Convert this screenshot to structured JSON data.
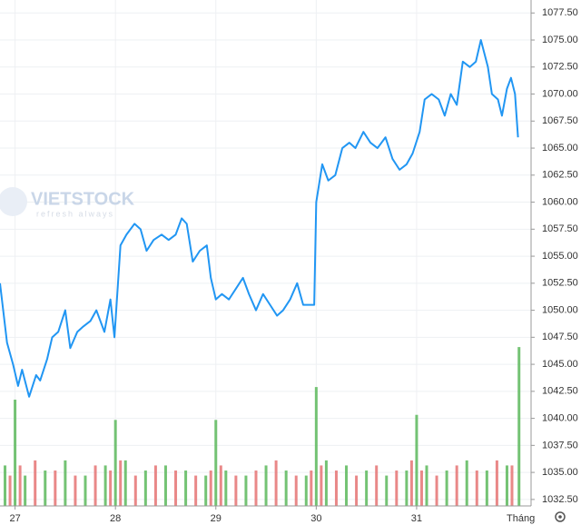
{
  "chart_data": {
    "type": "line",
    "watermark": {
      "brand": "VIETSTOCK",
      "tagline": "refresh always"
    },
    "xlabel": "Tháng",
    "xlim": [
      26.85,
      32.14
    ],
    "xticks": [
      27,
      28,
      29,
      30,
      31
    ],
    "ylim": [
      1031.9,
      1078.7
    ],
    "yticks": [
      {
        "value": 1032.5,
        "label": "1032.50"
      },
      {
        "value": 1035,
        "label": "1035.00"
      },
      {
        "value": 1037.5,
        "label": "1037.50"
      },
      {
        "value": 1040,
        "label": "1040.00"
      },
      {
        "value": 1042.5,
        "label": "1042.50"
      },
      {
        "value": 1045,
        "label": "1045.00"
      },
      {
        "value": 1047.5,
        "label": "1047.50"
      },
      {
        "value": 1050,
        "label": "1050.00"
      },
      {
        "value": 1052.5,
        "label": "1052.50"
      },
      {
        "value": 1055,
        "label": "1055.00"
      },
      {
        "value": 1057.5,
        "label": "1057.50"
      },
      {
        "value": 1060,
        "label": "1060.00"
      },
      {
        "value": 1062.5,
        "label": "1062.50"
      },
      {
        "value": 1065,
        "label": "1065.00"
      },
      {
        "value": 1067.5,
        "label": "1067.50"
      },
      {
        "value": 1070,
        "label": "1070.00"
      },
      {
        "value": 1072.5,
        "label": "1072.50"
      },
      {
        "value": 1075,
        "label": "1075.00"
      },
      {
        "value": 1077.5,
        "label": "1077.50"
      }
    ],
    "y2lim": [
      0,
      100
    ],
    "grid": true,
    "series": [
      {
        "color": "#2196f3",
        "x": [
          26.85,
          26.92,
          26.98,
          27.03,
          27.07,
          27.14,
          27.21,
          27.25,
          27.32,
          27.37,
          27.43,
          27.5,
          27.55,
          27.62,
          27.68,
          27.75,
          27.81,
          27.89,
          27.95,
          27.99,
          28.05,
          28.11,
          28.19,
          28.25,
          28.31,
          28.38,
          28.46,
          28.53,
          28.6,
          28.66,
          28.71,
          28.77,
          28.84,
          28.91,
          28.95,
          29.0,
          29.06,
          29.13,
          29.2,
          29.27,
          29.33,
          29.4,
          29.47,
          29.54,
          29.61,
          29.67,
          29.74,
          29.81,
          29.87,
          29.92,
          29.98,
          30.0,
          30.06,
          30.12,
          30.19,
          30.26,
          30.33,
          30.39,
          30.47,
          30.54,
          30.61,
          30.69,
          30.76,
          30.83,
          30.9,
          30.96,
          31.03,
          31.08,
          31.15,
          31.22,
          31.28,
          31.34,
          31.4,
          31.46,
          31.53,
          31.59,
          31.64,
          31.71,
          31.75,
          31.81,
          31.85,
          31.9,
          31.94,
          31.98,
          32.01
        ],
        "values": [
          1052.5,
          1047,
          1045,
          1043,
          1044.5,
          1042,
          1044,
          1043.5,
          1045.5,
          1047.5,
          1048,
          1050,
          1046.5,
          1048,
          1048.5,
          1049,
          1050,
          1048,
          1051,
          1047.5,
          1056,
          1057,
          1058,
          1057.5,
          1055.5,
          1056.5,
          1057,
          1056.5,
          1057,
          1058.5,
          1058,
          1054.5,
          1055.5,
          1056,
          1053,
          1051,
          1051.5,
          1051,
          1052,
          1053,
          1051.5,
          1050,
          1051.5,
          1050.5,
          1049.5,
          1050,
          1051,
          1052.5,
          1050.5,
          1050.5,
          1050.5,
          1060,
          1063.5,
          1062,
          1062.5,
          1065,
          1065.5,
          1065,
          1066.5,
          1065.5,
          1065,
          1066,
          1064,
          1063,
          1063.5,
          1064.5,
          1066.5,
          1069.5,
          1070,
          1069.5,
          1068,
          1070,
          1069,
          1073,
          1072.5,
          1073,
          1075,
          1072.5,
          1070,
          1069.5,
          1068,
          1070.5,
          1071.5,
          1070,
          1066
        ]
      },
      {
        "type": "bar",
        "axis": "y2",
        "color": "#5cb85c",
        "x": [
          26.9,
          27.0,
          27.1,
          27.3,
          27.5,
          27.7,
          27.9,
          28.0,
          28.1,
          28.3,
          28.5,
          28.7,
          28.9,
          29.0,
          29.1,
          29.3,
          29.5,
          29.7,
          29.9,
          30.0,
          30.1,
          30.3,
          30.5,
          30.7,
          30.9,
          31.0,
          31.1,
          31.3,
          31.5,
          31.7,
          31.9,
          32.02
        ],
        "values": [
          8,
          21,
          6,
          7,
          9,
          6,
          8,
          17,
          9,
          7,
          8,
          7,
          6,
          17,
          7,
          6,
          8,
          7,
          6,
          23.5,
          9,
          8,
          7,
          6,
          7,
          18,
          8,
          7,
          9,
          7,
          8,
          31.4
        ]
      },
      {
        "type": "bar",
        "axis": "y2",
        "color": "#e57373",
        "x": [
          26.95,
          27.05,
          27.2,
          27.4,
          27.6,
          27.8,
          27.95,
          28.05,
          28.2,
          28.4,
          28.6,
          28.8,
          28.95,
          29.05,
          29.2,
          29.4,
          29.6,
          29.8,
          29.95,
          30.05,
          30.2,
          30.4,
          30.6,
          30.8,
          30.95,
          31.05,
          31.2,
          31.4,
          31.6,
          31.8,
          31.95
        ],
        "values": [
          6,
          8,
          9,
          7,
          6,
          8,
          7,
          9,
          6,
          8,
          7,
          6,
          7,
          8,
          6,
          7,
          9,
          6,
          7,
          8,
          7,
          6,
          8,
          7,
          9,
          7,
          6,
          8,
          7,
          9,
          8
        ]
      }
    ]
  }
}
